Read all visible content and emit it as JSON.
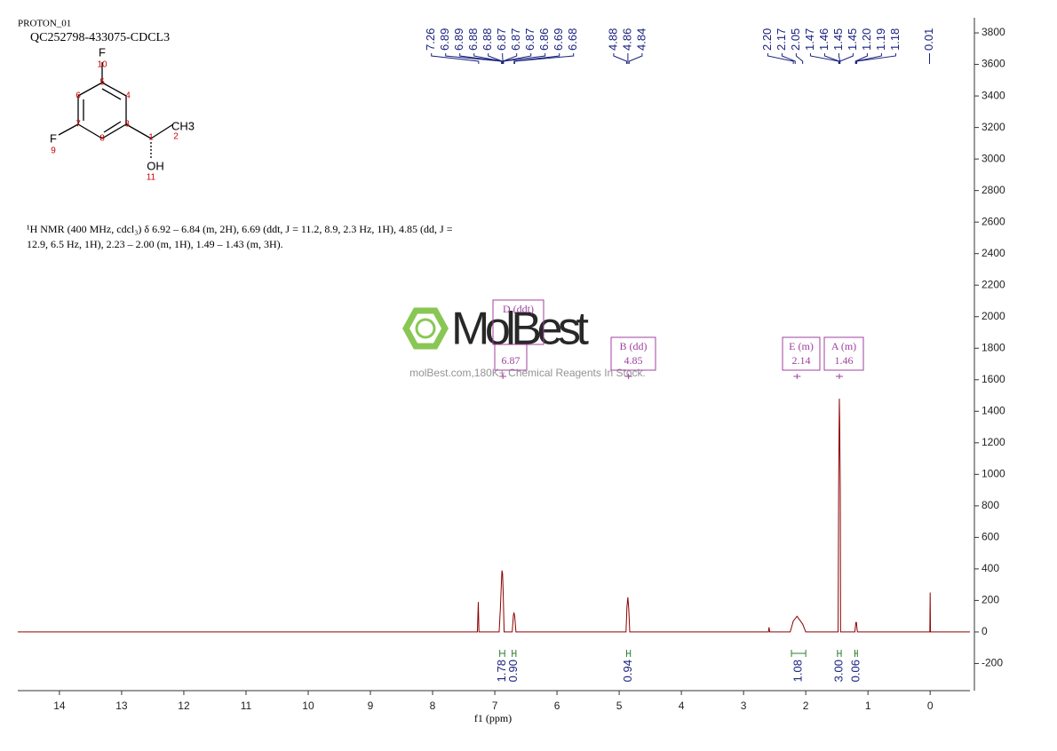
{
  "header": {
    "experiment": "PROTON_01",
    "sample": "QC252798-433075-CDCL3"
  },
  "structure": {
    "atoms": [
      "F",
      "10",
      "5",
      "6",
      "4",
      "7",
      "3",
      "F",
      "9",
      "8",
      "1",
      "2",
      "CH3",
      "OH",
      "11"
    ]
  },
  "description": [
    "¹H NMR (400 MHz, cdcl₃) δ 6.92 – 6.84 (m, 2H), 6.69 (ddt, J = 11.2, 8.9, 2.3 Hz, 1H), 4.85 (dd, J =",
    "12.9, 6.5 Hz, 1H), 2.23 – 2.00 (m, 1H), 1.49 – 1.43 (m, 3H)."
  ],
  "watermark": {
    "brand": "MolBest",
    "tagline": "molBest.com,180K+ Chemical Reagents In Stock."
  },
  "chart_data": {
    "type": "nmr",
    "xlabel": "f1 (ppm)",
    "color": "#8b0000",
    "xlim": [
      14.67,
      -0.64
    ],
    "xticks": [
      14,
      13,
      12,
      11,
      10,
      9,
      8,
      7,
      6,
      5,
      4,
      3,
      2,
      1,
      0
    ],
    "ylim": [
      -372,
      3896
    ],
    "yticks": [
      -200,
      0,
      200,
      400,
      600,
      800,
      1000,
      1200,
      1400,
      1600,
      1800,
      2000,
      2200,
      2400,
      2600,
      2800,
      3000,
      3200,
      3400,
      3600,
      3800
    ],
    "x": [
      14.67,
      7.28,
      7.265,
      7.255,
      6.93,
      6.91,
      6.895,
      6.885,
      6.875,
      6.865,
      6.85,
      6.72,
      6.7,
      6.69,
      6.68,
      6.66,
      4.89,
      4.875,
      4.86,
      4.845,
      4.83,
      2.6,
      2.59,
      2.58,
      2.25,
      2.2,
      2.14,
      2.05,
      2.0,
      1.48,
      1.47,
      1.46,
      1.455,
      1.445,
      1.44,
      1.21,
      1.195,
      1.185,
      1.17,
      0.005,
      0.0,
      -0.005,
      -0.64
    ],
    "values": [
      0,
      0,
      190,
      0,
      0,
      150,
      300,
      390,
      370,
      250,
      0,
      0,
      110,
      120,
      100,
      0,
      0,
      160,
      220,
      140,
      0,
      0,
      30,
      0,
      0,
      70,
      100,
      50,
      0,
      0,
      1000,
      1480,
      1350,
      900,
      0,
      0,
      60,
      60,
      0,
      0,
      250,
      0,
      0
    ],
    "peaks": [
      {
        "value": 7.26,
        "label": "7.26"
      },
      {
        "value": 6.89,
        "label": "6.89"
      },
      {
        "value": 6.89,
        "label": "6.89"
      },
      {
        "value": 6.88,
        "label": "6.88"
      },
      {
        "value": 6.88,
        "label": "6.88"
      },
      {
        "value": 6.87,
        "label": "6.87"
      },
      {
        "value": 6.87,
        "label": "6.87"
      },
      {
        "value": 6.87,
        "label": "6.87"
      },
      {
        "value": 6.86,
        "label": "6.86"
      },
      {
        "value": 6.69,
        "label": "6.69"
      },
      {
        "value": 6.68,
        "label": "6.68"
      },
      {
        "value": 4.88,
        "label": "4.88"
      },
      {
        "value": 4.86,
        "label": "4.86"
      },
      {
        "value": 4.84,
        "label": "4.84"
      },
      {
        "value": 2.2,
        "label": "2.20"
      },
      {
        "value": 2.17,
        "label": "2.17"
      },
      {
        "value": 2.05,
        "label": "2.05"
      },
      {
        "value": 1.47,
        "label": "1.47"
      },
      {
        "value": 1.46,
        "label": "1.46"
      },
      {
        "value": 1.45,
        "label": "1.45"
      },
      {
        "value": 1.45,
        "label": "1.45"
      },
      {
        "value": 1.2,
        "label": "1.20"
      },
      {
        "value": 1.19,
        "label": "1.19"
      },
      {
        "value": 1.18,
        "label": "1.18"
      },
      {
        "value": 0.01,
        "label": "0.01"
      }
    ],
    "integrals": [
      {
        "from": 6.92,
        "to": 6.84,
        "value": 1.78,
        "label": "1.78"
      },
      {
        "from": 6.72,
        "to": 6.66,
        "value": 0.9,
        "label": "0.90"
      },
      {
        "from": 4.88,
        "to": 4.82,
        "value": 0.94,
        "label": "0.94"
      },
      {
        "from": 2.23,
        "to": 2.0,
        "value": 1.08,
        "label": "1.08"
      },
      {
        "from": 1.49,
        "to": 1.43,
        "value": 3.0,
        "label": "3.00"
      },
      {
        "from": 1.21,
        "to": 1.17,
        "value": 0.06,
        "label": "0.06"
      }
    ],
    "multiplets": [
      {
        "name": "D (ddt)"
      },
      {
        "shift": 6.87
      },
      {
        "name": "B (dd)",
        "shift": 4.85
      },
      {
        "name": "E (m)",
        "shift": 2.14
      },
      {
        "name": "A (m)",
        "shift": 1.46
      }
    ]
  }
}
